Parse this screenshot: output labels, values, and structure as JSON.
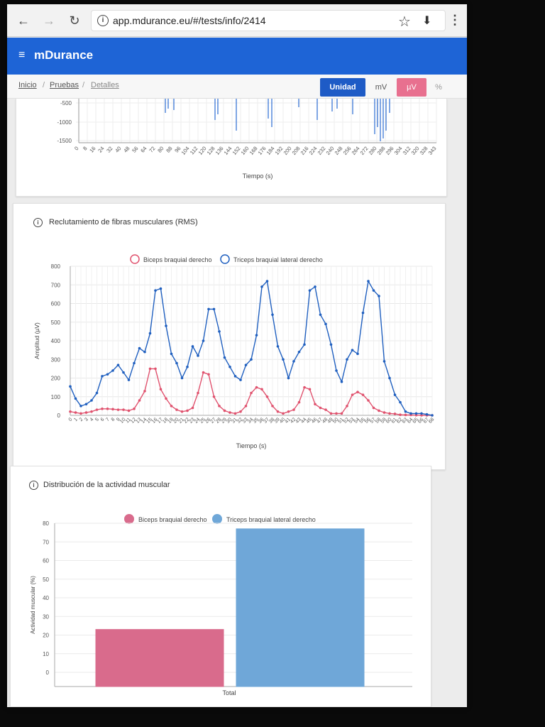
{
  "browser": {
    "url": "app.mdurance.eu/#/tests/info/2414",
    "back_icon": "←",
    "forward_icon": "→",
    "reload_icon": "↻",
    "star_icon": "☆",
    "download_icon": "⬇",
    "menu_icon": "⋮",
    "info_icon": "i"
  },
  "header": {
    "title": "mDurance",
    "menu_icon": "≡"
  },
  "breadcrumb": {
    "items": [
      "Inicio",
      "Pruebas",
      "Detalles"
    ],
    "separator": "/"
  },
  "units": {
    "label": "Unidad",
    "options": [
      "mV",
      "µV",
      "%"
    ],
    "selected": "µV",
    "colors": {
      "label_bg": "#1e5bc6",
      "selected_bg": "#e8708f"
    }
  },
  "signal_chart": {
    "xlabel": "Tiempo (s)",
    "y_ticks": [
      "-500",
      "-1000",
      "-1500"
    ],
    "x_ticks": [
      "0",
      "8",
      "16",
      "24",
      "32",
      "40",
      "48",
      "56",
      "64",
      "72",
      "80",
      "88",
      "96",
      "104",
      "112",
      "120",
      "128",
      "136",
      "144",
      "152",
      "160",
      "168",
      "176",
      "184",
      "192",
      "200",
      "208",
      "216",
      "224",
      "232",
      "240",
      "248",
      "256",
      "264",
      "272",
      "280",
      "288",
      "296",
      "304",
      "312",
      "320",
      "328",
      "343"
    ]
  },
  "rms_card": {
    "title": "Reclutamiento de fibras musculares (RMS)",
    "info_icon": "i"
  },
  "dist_card": {
    "title": "Distribución de la actividad muscular",
    "info_icon": "i"
  },
  "chart_data": [
    {
      "type": "line",
      "ylabel": "Amplitud (µV)",
      "xlabel": "Tiempo (s)",
      "ylim": [
        0,
        800
      ],
      "y_ticks": [
        0,
        100,
        200,
        300,
        400,
        500,
        600,
        700,
        800
      ],
      "x_tick_labels": "0-68",
      "legend_position": "top",
      "series": [
        {
          "name": "Biceps braquial derecho",
          "color": "#e0526e",
          "values": [
            20,
            15,
            10,
            15,
            20,
            30,
            35,
            35,
            33,
            30,
            30,
            25,
            35,
            80,
            130,
            250,
            250,
            140,
            90,
            50,
            30,
            20,
            25,
            40,
            120,
            230,
            220,
            100,
            50,
            25,
            15,
            10,
            20,
            50,
            120,
            150,
            140,
            100,
            50,
            20,
            10,
            20,
            30,
            70,
            150,
            140,
            60,
            40,
            30,
            10,
            10,
            10,
            50,
            110,
            125,
            110,
            80,
            40,
            25,
            15,
            10,
            8,
            3,
            2,
            2,
            1,
            0,
            0,
            0
          ]
        },
        {
          "name": "Triceps braquial lateral derecho",
          "color": "#1f5fbf",
          "values": [
            155,
            90,
            50,
            60,
            80,
            120,
            210,
            220,
            240,
            270,
            230,
            190,
            280,
            360,
            340,
            440,
            670,
            680,
            480,
            330,
            280,
            200,
            260,
            370,
            320,
            400,
            570,
            570,
            450,
            310,
            260,
            210,
            190,
            270,
            300,
            430,
            690,
            720,
            540,
            370,
            300,
            200,
            290,
            340,
            380,
            670,
            690,
            540,
            490,
            380,
            240,
            180,
            300,
            350,
            330,
            550,
            720,
            670,
            640,
            290,
            200,
            110,
            70,
            20,
            10,
            10,
            10,
            5,
            0
          ]
        }
      ]
    },
    {
      "type": "bar",
      "ylabel": "Actividad muscular (%)",
      "ylim": [
        0,
        80
      ],
      "y_ticks": [
        0,
        10,
        20,
        30,
        40,
        50,
        60,
        70,
        80
      ],
      "categories": [
        "Total"
      ],
      "legend_position": "top",
      "series": [
        {
          "name": "Biceps braquial derecho",
          "color": "#d96b8c",
          "values": [
            23
          ]
        },
        {
          "name": "Triceps braquial lateral derecho",
          "color": "#6fa7d8",
          "values": [
            77
          ]
        }
      ]
    }
  ]
}
